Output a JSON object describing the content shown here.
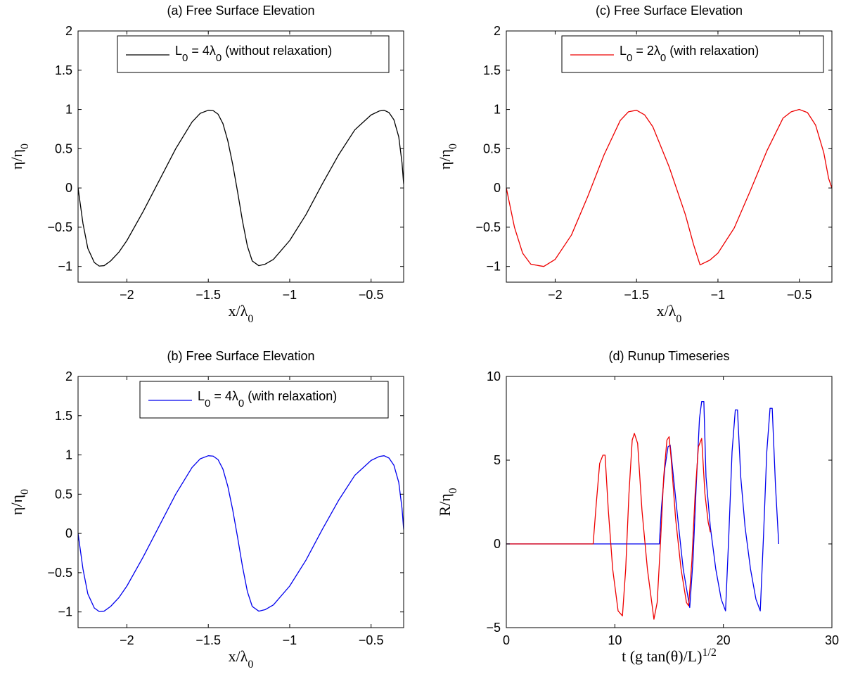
{
  "chart_data": [
    {
      "id": "a",
      "type": "line",
      "title": "(a)  Free Surface Elevation",
      "xlabel": "x/λ0",
      "ylabel": "η/η0",
      "xlim": [
        -2.3,
        -0.3
      ],
      "ylim": [
        -1.2,
        2
      ],
      "xticks": [
        -2,
        -1.5,
        -1,
        -0.5
      ],
      "xtick_labels": [
        "−2",
        "−1.5",
        "−1",
        "−0.5"
      ],
      "yticks": [
        -1,
        -0.5,
        0,
        0.5,
        1,
        1.5,
        2
      ],
      "ytick_labels": [
        "−1",
        "−0.5",
        "0",
        "0.5",
        "1",
        "1.5",
        "2"
      ],
      "grid": false,
      "legend_position": "top-right",
      "series": [
        {
          "name": "L0 = 4λ0 (without relaxation)",
          "legend_main": "L",
          "legend_sub": "0",
          "legend_mid": " = 4λ",
          "legend_sub2": "0",
          "legend_tail": " (without relaxation)",
          "color": "#000000",
          "x": [
            -2.3,
            -2.27,
            -2.24,
            -2.2,
            -2.17,
            -2.14,
            -2.1,
            -2.05,
            -2.0,
            -1.9,
            -1.8,
            -1.7,
            -1.6,
            -1.55,
            -1.5,
            -1.47,
            -1.44,
            -1.41,
            -1.38,
            -1.35,
            -1.32,
            -1.29,
            -1.26,
            -1.23,
            -1.19,
            -1.15,
            -1.1,
            -1.0,
            -0.9,
            -0.8,
            -0.7,
            -0.6,
            -0.5,
            -0.45,
            -0.42,
            -0.39,
            -0.36,
            -0.33,
            -0.31,
            -0.3
          ],
          "y": [
            0.0,
            -0.45,
            -0.77,
            -0.95,
            -0.995,
            -0.99,
            -0.93,
            -0.82,
            -0.67,
            -0.3,
            0.1,
            0.5,
            0.84,
            0.95,
            0.99,
            0.985,
            0.94,
            0.82,
            0.6,
            0.3,
            -0.05,
            -0.42,
            -0.74,
            -0.93,
            -0.99,
            -0.97,
            -0.91,
            -0.67,
            -0.34,
            0.05,
            0.42,
            0.74,
            0.93,
            0.98,
            0.99,
            0.96,
            0.87,
            0.65,
            0.32,
            0.05
          ]
        }
      ]
    },
    {
      "id": "b",
      "type": "line",
      "title": "(b)  Free Surface Elevation",
      "xlabel": "x/λ0",
      "ylabel": "η/η0",
      "xlim": [
        -2.3,
        -0.3
      ],
      "ylim": [
        -1.2,
        2
      ],
      "xticks": [
        -2,
        -1.5,
        -1,
        -0.5
      ],
      "xtick_labels": [
        "−2",
        "−1.5",
        "−1",
        "−0.5"
      ],
      "yticks": [
        -1,
        -0.5,
        0,
        0.5,
        1,
        1.5,
        2
      ],
      "ytick_labels": [
        "−1",
        "−0.5",
        "0",
        "0.5",
        "1",
        "1.5",
        "2"
      ],
      "grid": false,
      "legend_position": "top-right",
      "series": [
        {
          "name": "L0 = 4λ0 (with relaxation)",
          "legend_main": "L",
          "legend_sub": "0",
          "legend_mid": " = 4λ",
          "legend_sub2": "0",
          "legend_tail": " (with relaxation)",
          "color": "#0000ee",
          "x": [
            -2.3,
            -2.27,
            -2.24,
            -2.2,
            -2.17,
            -2.14,
            -2.1,
            -2.05,
            -2.0,
            -1.9,
            -1.8,
            -1.7,
            -1.6,
            -1.55,
            -1.5,
            -1.47,
            -1.44,
            -1.41,
            -1.38,
            -1.35,
            -1.32,
            -1.29,
            -1.26,
            -1.23,
            -1.19,
            -1.15,
            -1.1,
            -1.0,
            -0.9,
            -0.8,
            -0.7,
            -0.6,
            -0.5,
            -0.45,
            -0.42,
            -0.39,
            -0.36,
            -0.33,
            -0.31,
            -0.3
          ],
          "y": [
            0.0,
            -0.45,
            -0.77,
            -0.95,
            -0.995,
            -0.99,
            -0.93,
            -0.82,
            -0.67,
            -0.3,
            0.1,
            0.5,
            0.84,
            0.95,
            0.99,
            0.985,
            0.94,
            0.82,
            0.6,
            0.3,
            -0.05,
            -0.42,
            -0.74,
            -0.93,
            -0.99,
            -0.97,
            -0.91,
            -0.67,
            -0.34,
            0.05,
            0.42,
            0.74,
            0.93,
            0.98,
            0.99,
            0.96,
            0.87,
            0.65,
            0.32,
            0.05
          ]
        }
      ]
    },
    {
      "id": "c",
      "type": "line",
      "title": "(c)  Free Surface Elevation",
      "xlabel": "x/λ0",
      "ylabel": "η/η0",
      "xlim": [
        -2.3,
        -0.3
      ],
      "ylim": [
        -1.2,
        2
      ],
      "xticks": [
        -2,
        -1.5,
        -1,
        -0.5
      ],
      "xtick_labels": [
        "−2",
        "−1.5",
        "−1",
        "−0.5"
      ],
      "yticks": [
        -1,
        -0.5,
        0,
        0.5,
        1,
        1.5,
        2
      ],
      "ytick_labels": [
        "−1",
        "−0.5",
        "0",
        "0.5",
        "1",
        "1.5",
        "2"
      ],
      "grid": false,
      "legend_position": "top-right",
      "series": [
        {
          "name": "L0 = 2λ0 (with relaxation)",
          "legend_main": "L",
          "legend_sub": "0",
          "legend_mid": " = 2λ",
          "legend_sub2": "0",
          "legend_tail": " (with relaxation)",
          "color": "#ee0000",
          "x": [
            -2.3,
            -2.25,
            -2.2,
            -2.15,
            -2.1,
            -2.07,
            -2.0,
            -1.9,
            -1.8,
            -1.7,
            -1.6,
            -1.55,
            -1.5,
            -1.45,
            -1.4,
            -1.3,
            -1.2,
            -1.15,
            -1.11,
            -1.05,
            -1.0,
            -0.9,
            -0.8,
            -0.7,
            -0.6,
            -0.55,
            -0.5,
            -0.45,
            -0.4,
            -0.35,
            -0.32,
            -0.3
          ],
          "y": [
            0.0,
            -0.5,
            -0.83,
            -0.97,
            -0.99,
            -1.0,
            -0.91,
            -0.6,
            -0.11,
            0.42,
            0.86,
            0.97,
            0.99,
            0.93,
            0.78,
            0.27,
            -0.34,
            -0.72,
            -0.98,
            -0.92,
            -0.83,
            -0.51,
            -0.03,
            0.47,
            0.89,
            0.97,
            1.0,
            0.96,
            0.8,
            0.45,
            0.12,
            0.0
          ]
        }
      ]
    },
    {
      "id": "d",
      "type": "line",
      "title": "(d)  Runup Timeseries",
      "xlabel": "t (g tan(θ)/L)^1/2",
      "ylabel": "R/η0",
      "xlim": [
        0,
        30
      ],
      "ylim": [
        -5,
        10
      ],
      "xticks": [
        0,
        10,
        20,
        30
      ],
      "xtick_labels": [
        "0",
        "10",
        "20",
        "30"
      ],
      "yticks": [
        -5,
        0,
        5,
        10
      ],
      "ytick_labels": [
        "−5",
        "0",
        "5",
        "10"
      ],
      "grid": false,
      "series": [
        {
          "color": "#0000ee",
          "x": [
            0,
            14.1,
            14.3,
            14.6,
            14.9,
            15.1,
            15.4,
            15.8,
            16.3,
            16.9,
            17.2,
            17.5,
            17.8,
            18.0,
            18.2,
            18.4,
            18.8,
            19.3,
            19.8,
            20.2,
            20.5,
            20.8,
            21.1,
            21.3,
            21.6,
            22.0,
            22.5,
            23.0,
            23.4,
            23.7,
            24.0,
            24.3,
            24.5,
            24.8,
            25.1
          ],
          "y": [
            0,
            0,
            2.2,
            4.5,
            5.8,
            5.9,
            4.0,
            1.5,
            -1.5,
            -3.8,
            -1.0,
            3.5,
            7.5,
            8.5,
            8.5,
            4.0,
            1.0,
            -1.5,
            -3.3,
            -4.0,
            0.5,
            5.5,
            8.0,
            8.0,
            4.0,
            1.0,
            -1.5,
            -3.3,
            -4.0,
            0.5,
            5.5,
            8.1,
            8.1,
            3.5,
            0.0
          ]
        },
        {
          "color": "#ee0000",
          "x": [
            0,
            8.0,
            8.3,
            8.6,
            8.9,
            9.1,
            9.4,
            9.8,
            10.3,
            10.7,
            11.0,
            11.3,
            11.6,
            11.8,
            12.1,
            12.5,
            13.0,
            13.6,
            13.9,
            14.2,
            14.5,
            14.8,
            15.0,
            15.2,
            15.6,
            16.1,
            16.6,
            16.8,
            17.1,
            17.4,
            17.7,
            18.0,
            18.3,
            18.6,
            18.8
          ],
          "y": [
            0,
            0,
            2.5,
            4.8,
            5.3,
            5.3,
            2.0,
            -1.5,
            -4.0,
            -4.3,
            -1.5,
            3.0,
            6.2,
            6.6,
            6.0,
            2.0,
            -1.5,
            -4.5,
            -3.5,
            0.0,
            4.0,
            6.2,
            6.4,
            5.0,
            1.5,
            -1.5,
            -3.5,
            -3.7,
            -1.0,
            3.0,
            5.8,
            6.3,
            3.0,
            1.3,
            0.7
          ]
        }
      ]
    }
  ]
}
